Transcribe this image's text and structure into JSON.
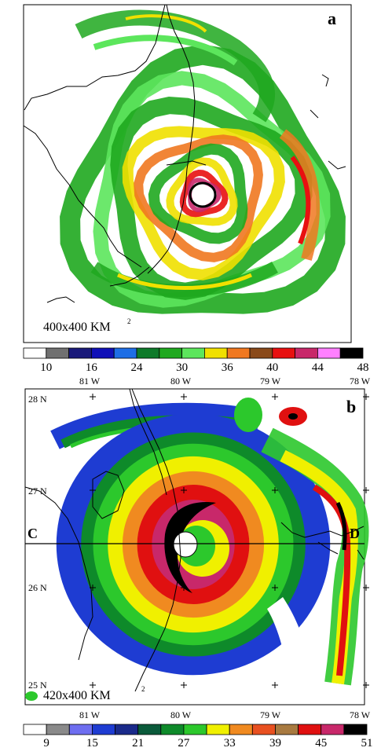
{
  "panel_a": {
    "letter": "a",
    "scale_text": "400x400 KM",
    "scale_sup": "2",
    "colorbar": {
      "colors": [
        "#ffffff",
        "#707070",
        "#1a1a7a",
        "#1010b8",
        "#1e6ee6",
        "#0e7a2a",
        "#1fa81f",
        "#5ce65c",
        "#f0e000",
        "#f07820",
        "#8a4a1a",
        "#e81010",
        "#c8286a",
        "#ff80ff",
        "#000000"
      ],
      "labels": [
        "10",
        "16",
        "24",
        "30",
        "36",
        "40",
        "44",
        "48"
      ]
    }
  },
  "panel_b": {
    "letter": "b",
    "scale_text": "420x400 KM",
    "scale_sup": "2",
    "cross_section": {
      "start": "C",
      "end": "D"
    },
    "lon_labels_top": [
      "81 W",
      "80 W",
      "79 W",
      "78 W"
    ],
    "lon_labels_bottom": [
      "81 W",
      "80 W",
      "79 W",
      "78 W"
    ],
    "lat_labels": [
      "28 N",
      "27 N",
      "26 N",
      "25 N"
    ],
    "colorbar": {
      "colors": [
        "#ffffff",
        "#8a8a8a",
        "#6e6ef0",
        "#1e3cd2",
        "#1a2a8a",
        "#0a5a3a",
        "#0e8a2a",
        "#2cc82c",
        "#f0f000",
        "#f08a20",
        "#e85020",
        "#a87a40",
        "#e01010",
        "#c8286a",
        "#000000"
      ],
      "labels": [
        "9",
        "15",
        "21",
        "27",
        "33",
        "39",
        "45",
        "51"
      ]
    }
  },
  "colors": {
    "green": "#1fa81f",
    "light_green": "#5ce65c",
    "yellow": "#f0e000",
    "orange": "#f07820",
    "red": "#e81010",
    "magenta": "#c8286a",
    "blue": "#1e3cd2",
    "dark_blue": "#1a1a7a",
    "black": "#000000"
  }
}
